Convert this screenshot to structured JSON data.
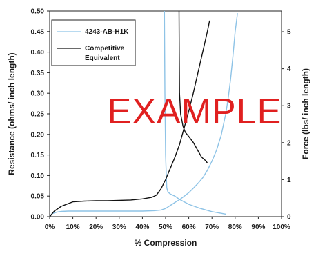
{
  "chart_data": {
    "type": "line",
    "xlabel": "% Compression",
    "ylabel_left": "Resistance (ohms/ inch length)",
    "ylabel_right": "Force (lbs/ inch length)",
    "xlim": [
      0,
      100
    ],
    "ylim_left": [
      0,
      0.5
    ],
    "ylim_right": [
      0,
      5.56
    ],
    "x_ticks": [
      "0%",
      "10%",
      "20%",
      "30%",
      "40%",
      "50%",
      "60%",
      "70%",
      "80%",
      "90%",
      "100%"
    ],
    "y_left_ticks": [
      "0.00",
      "0.05",
      "0.10",
      "0.15",
      "0.20",
      "0.25",
      "0.30",
      "0.35",
      "0.40",
      "0.45",
      "0.50"
    ],
    "y_right_ticks": [
      "0",
      "1",
      "2",
      "3",
      "4",
      "5"
    ],
    "grid": false,
    "legend_position": "top-left",
    "watermark": "EXAMPLE",
    "colors": {
      "series_a": "#8ec3e6",
      "series_b": "#111111",
      "watermark": "#e02020",
      "background": "#ffffff"
    },
    "series": [
      {
        "name": "4243-AB-H1K",
        "role": "resistance",
        "axis": "left",
        "x": [
          49.5,
          49.7,
          50.0,
          50.5,
          51.0,
          52.0,
          54.0,
          56.0,
          60.0,
          65.0,
          70.0,
          74.0,
          76.0
        ],
        "y": [
          0.5,
          0.3,
          0.15,
          0.07,
          0.06,
          0.055,
          0.05,
          0.042,
          0.03,
          0.02,
          0.012,
          0.008,
          0.006
        ]
      },
      {
        "name": "4243-AB-H1K",
        "role": "force",
        "axis": "right",
        "x": [
          0,
          1,
          3,
          5,
          8,
          10,
          15,
          20,
          30,
          40,
          45,
          48,
          50,
          52,
          54,
          56,
          58,
          60,
          62,
          64,
          66,
          68,
          70,
          72,
          74,
          76,
          77,
          78,
          79,
          80,
          81
        ],
        "y": [
          0,
          0.08,
          0.12,
          0.14,
          0.15,
          0.15,
          0.15,
          0.15,
          0.15,
          0.15,
          0.16,
          0.18,
          0.22,
          0.3,
          0.38,
          0.46,
          0.55,
          0.65,
          0.77,
          0.9,
          1.05,
          1.25,
          1.5,
          1.8,
          2.2,
          2.8,
          3.2,
          3.7,
          4.3,
          5.0,
          5.5
        ]
      },
      {
        "name": "Competitive Equivalent",
        "role": "resistance",
        "axis": "left",
        "x": [
          55.8,
          55.9,
          56.0,
          56.5,
          57.5,
          58.5,
          60.0,
          62.0,
          64.0,
          65.5,
          66.5,
          67.5,
          68.0
        ],
        "y": [
          0.5,
          0.4,
          0.3,
          0.25,
          0.22,
          0.205,
          0.195,
          0.18,
          0.16,
          0.145,
          0.14,
          0.135,
          0.13
        ]
      },
      {
        "name": "Competitive Equivalent",
        "role": "force",
        "axis": "right",
        "x": [
          0,
          2,
          5,
          8,
          10,
          15,
          20,
          25,
          30,
          35,
          40,
          44,
          46,
          48,
          50,
          52,
          54,
          56,
          58,
          60,
          62,
          64,
          66,
          68,
          69
        ],
        "y": [
          0,
          0.15,
          0.28,
          0.35,
          0.4,
          0.42,
          0.43,
          0.43,
          0.44,
          0.45,
          0.48,
          0.52,
          0.58,
          0.75,
          1.0,
          1.3,
          1.6,
          1.95,
          2.4,
          2.85,
          3.35,
          3.9,
          4.45,
          5.0,
          5.3
        ]
      }
    ]
  },
  "legend": [
    {
      "label": "4243-AB-H1K",
      "color": "#8ec3e6"
    },
    {
      "label": "Competitive",
      "label2": "Equivalent",
      "color": "#111111"
    }
  ]
}
